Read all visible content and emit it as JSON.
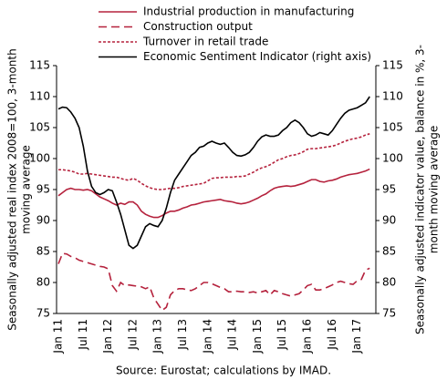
{
  "chart_data": {
    "type": "line",
    "legend": "top",
    "ylabel": [
      "Seasonally adjusted real index 2008=100, 3-month",
      "moving average"
    ],
    "y2label": [
      "Seasonally adjusted indicator value, balance in %, 3-",
      "month moving average"
    ],
    "source": "Source: Eurostat; calculations by IMAD.",
    "ylim": [
      75,
      115
    ],
    "yticks": [
      75,
      80,
      85,
      90,
      95,
      100,
      105,
      110,
      115
    ],
    "y2lim": [
      75,
      115
    ],
    "y2ticks": [
      75,
      80,
      85,
      90,
      95,
      100,
      105,
      110,
      115
    ],
    "categories": [
      "Jan 11",
      null,
      null,
      null,
      null,
      null,
      "Jul 11",
      null,
      null,
      null,
      null,
      null,
      "Jan 12",
      null,
      null,
      null,
      null,
      null,
      "Jul 12",
      null,
      null,
      null,
      null,
      null,
      "Jan 13",
      null,
      null,
      null,
      null,
      null,
      "Jul 13",
      null,
      null,
      null,
      null,
      null,
      "Jan 14",
      null,
      null,
      null,
      null,
      null,
      "Jul 14",
      null,
      null,
      null,
      null,
      null,
      "Jan 15",
      null,
      null,
      null,
      null,
      null,
      "Jul 15",
      null,
      null,
      null,
      null,
      null,
      "Jan 16",
      null,
      null,
      null,
      null,
      null,
      "Jul 16",
      null,
      null,
      null,
      null,
      null,
      "Jan 17",
      null,
      null,
      null
    ],
    "series": [
      {
        "name": "Industrial production in manufacturing",
        "color": "#b5223d",
        "dash": "solid",
        "values": [
          94,
          94.5,
          95,
          95.2,
          95,
          95,
          94.9,
          95,
          94.8,
          94.3,
          93.8,
          93.5,
          93.2,
          92.8,
          92.5,
          92.8,
          92.6,
          93,
          93,
          92.5,
          91.5,
          91,
          90.7,
          90.5,
          90.5,
          90.8,
          91.2,
          91.5,
          91.5,
          91.7,
          92,
          92.2,
          92.5,
          92.6,
          92.8,
          93,
          93.1,
          93.2,
          93.3,
          93.4,
          93.2,
          93.1,
          93,
          92.8,
          92.7,
          92.8,
          93,
          93.3,
          93.6,
          94,
          94.3,
          94.8,
          95.2,
          95.4,
          95.5,
          95.6,
          95.5,
          95.6,
          95.8,
          96,
          96.3,
          96.6,
          96.6,
          96.3,
          96.2,
          96.4,
          96.5,
          96.7,
          97,
          97.2,
          97.4,
          97.5,
          97.6,
          97.8,
          98,
          98.3
        ]
      },
      {
        "name": "Construction output",
        "color": "#b5223d",
        "dash": "dashed",
        "values": [
          83,
          84.7,
          84.6,
          84.2,
          84,
          83.6,
          83.4,
          83.2,
          83,
          82.8,
          82.6,
          82.5,
          82.2,
          79.5,
          78.6,
          80,
          79.5,
          79.6,
          79.5,
          79.4,
          79.3,
          79,
          79.3,
          77.5,
          76.5,
          75.5,
          76,
          78,
          78.7,
          79,
          79,
          78.8,
          78.7,
          79,
          79.5,
          80,
          80,
          79.8,
          79.5,
          79.2,
          79,
          78.5,
          78.5,
          78.6,
          78.5,
          78.5,
          78.4,
          78.5,
          78.3,
          78.5,
          78.7,
          78,
          78.7,
          78.5,
          78.2,
          78,
          77.8,
          78,
          78.2,
          78.8,
          79.5,
          79.7,
          78.8,
          78.8,
          79,
          79.3,
          79.6,
          80,
          80.2,
          80,
          79.8,
          79.7,
          80.3,
          80.5,
          82,
          82.3
        ]
      },
      {
        "name": "Turnover in retail trade",
        "color": "#b5223d",
        "dash": "dotted",
        "values": [
          98.2,
          98.2,
          98.1,
          98,
          97.8,
          97.5,
          97.5,
          97.6,
          97.5,
          97.4,
          97.3,
          97.2,
          97.1,
          97,
          97,
          96.8,
          96.6,
          96.5,
          96.8,
          96.5,
          96,
          95.6,
          95.3,
          95.1,
          95,
          95,
          95.1,
          95.2,
          95.2,
          95.3,
          95.5,
          95.6,
          95.7,
          95.8,
          95.9,
          96,
          96.4,
          96.8,
          96.9,
          96.9,
          97,
          97,
          97,
          97.1,
          97.1,
          97.2,
          97.5,
          97.8,
          98.2,
          98.5,
          98.7,
          99,
          99.4,
          99.8,
          100,
          100.3,
          100.5,
          100.6,
          100.8,
          101.1,
          101.5,
          101.6,
          101.6,
          101.7,
          101.8,
          101.9,
          102,
          102.2,
          102.5,
          102.8,
          103,
          103.2,
          103.3,
          103.5,
          103.8,
          104
        ]
      },
      {
        "name": "Economic Sentiment Indicator (right axis)",
        "color": "#000000",
        "dash": "solid",
        "axis": "y2",
        "values": [
          108,
          108.3,
          108.2,
          107.5,
          106.5,
          105,
          102,
          98,
          95.5,
          94.5,
          94.2,
          94.5,
          95,
          94.8,
          93,
          91,
          88.5,
          86,
          85.5,
          86,
          87.5,
          89,
          89.5,
          89.2,
          89,
          90,
          92,
          94.5,
          96.5,
          97.5,
          98.5,
          99.5,
          100.5,
          101,
          101.8,
          102,
          102.5,
          102.8,
          102.5,
          102.3,
          102.5,
          101.8,
          101,
          100.5,
          100.4,
          100.6,
          101,
          101.8,
          102.8,
          103.5,
          103.8,
          103.6,
          103.6,
          103.8,
          104.5,
          105,
          105.8,
          106.2,
          105.8,
          105,
          104,
          103.6,
          103.8,
          104.2,
          104,
          103.8,
          104.5,
          105.5,
          106.5,
          107.3,
          107.8,
          108,
          108.2,
          108.6,
          109,
          110
        ]
      }
    ]
  }
}
